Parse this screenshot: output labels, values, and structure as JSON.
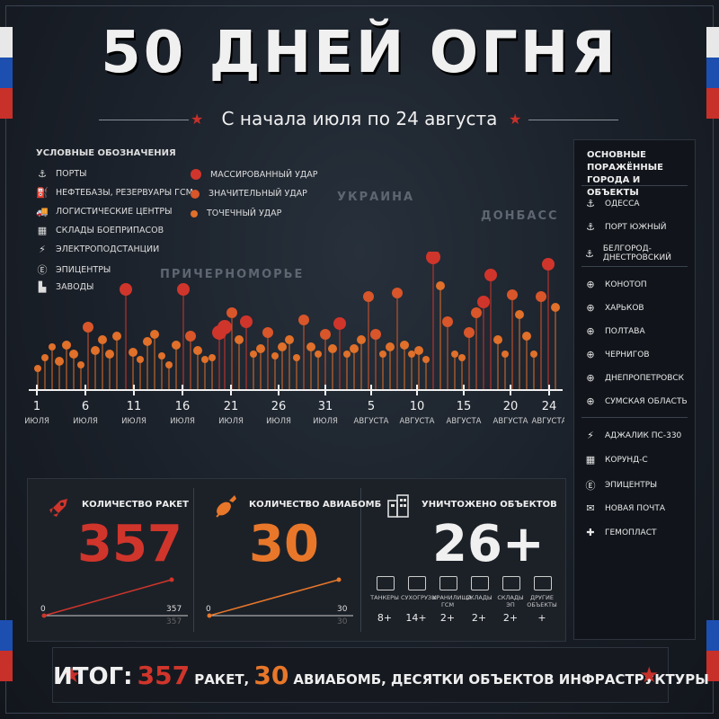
{
  "title": "50 ДНЕЙ ОГНЯ",
  "subtitle": "С начала июля по 24 августа",
  "legend": {
    "title": "УСЛОВНЫЕ ОБОЗНАЧЕНИЯ",
    "items": [
      {
        "icon": "anchor-icon",
        "label": "ПОРТЫ"
      },
      {
        "icon": "fuel-icon",
        "label": "НЕФТЕБАЗЫ, РЕЗЕРВУАРЫ ГСМ"
      },
      {
        "icon": "truck-icon",
        "label": "ЛОГИСТИЧЕСКИЕ ЦЕНТРЫ"
      },
      {
        "icon": "ammo-icon",
        "label": "СКЛАДЫ БОЕПРИПАСОВ"
      },
      {
        "icon": "bolt-icon",
        "label": "ЭЛЕКТРОПОДСТАНЦИИ"
      },
      {
        "icon": "e-box-icon",
        "label": "ЭПИЦЕНТРЫ"
      },
      {
        "icon": "factory-icon",
        "label": "ЗАВОДЫ"
      }
    ],
    "strikes": [
      {
        "label": "МАССИРОВАННЫЙ УДАР",
        "color": "#d0352b"
      },
      {
        "label": "ЗНАЧИТЕЛЬНЫЙ УДАР",
        "color": "#d8562a"
      },
      {
        "label": "ТОЧЕЧНЫЙ УДАР",
        "color": "#e0702a"
      }
    ]
  },
  "map_labels": [
    "УКРАИНА",
    "ДОНБАСС",
    "ПРИЧЕРНОМОРЬЕ"
  ],
  "timeline": {
    "ticks": [
      {
        "day": "1",
        "month": "ИЮЛЯ"
      },
      {
        "day": "6",
        "month": "ИЮЛЯ"
      },
      {
        "day": "11",
        "month": "ИЮЛЯ"
      },
      {
        "day": "16",
        "month": "ИЮЛЯ"
      },
      {
        "day": "21",
        "month": "ИЮЛЯ"
      },
      {
        "day": "26",
        "month": "ИЮЛЯ"
      },
      {
        "day": "31",
        "month": "ИЮЛЯ"
      },
      {
        "day": "5",
        "month": "АВГУСТА"
      },
      {
        "day": "10",
        "month": "АВГУСТА"
      },
      {
        "day": "15",
        "month": "АВГУСТА"
      },
      {
        "day": "20",
        "month": "АВГУСТА"
      },
      {
        "day": "24",
        "month": "АВГУСТА"
      }
    ]
  },
  "right_panel": {
    "title_1": "ОСНОВНЫЕ ПОРАЖЁННЫЕ",
    "title_2": "ГОРОДА И ОБЪЕКТЫ",
    "groups": [
      [
        {
          "icon": "anchor-icon",
          "label": "ОДЕССА"
        },
        {
          "icon": "anchor-icon",
          "label": "ПОРТ ЮЖНЫЙ"
        },
        {
          "icon": "anchor-icon",
          "label": "БЕЛГОРОД-ДНЕСТРОВСКИЙ"
        }
      ],
      [
        {
          "icon": "target-icon",
          "label": "КОНОТОП"
        },
        {
          "icon": "target-icon",
          "label": "ХАРЬКОВ"
        },
        {
          "icon": "target-icon",
          "label": "ПОЛТАВА"
        },
        {
          "icon": "target-icon",
          "label": "ЧЕРНИГОВ"
        },
        {
          "icon": "target-icon",
          "label": "ДНЕПРОПЕТРОВСК"
        },
        {
          "icon": "target-icon",
          "label": "СУМСКАЯ ОБЛАСТЬ"
        }
      ],
      [
        {
          "icon": "bolt-icon",
          "label": "АДЖАЛИК ПС-330"
        },
        {
          "icon": "ammo-icon",
          "label": "КОРУНД-С"
        },
        {
          "icon": "e-box-icon",
          "label": "ЭПИЦЕНТРЫ"
        },
        {
          "icon": "mail-icon",
          "label": "НОВАЯ ПОЧТА"
        },
        {
          "icon": "cross-icon",
          "label": "ГЕМОПЛАСТ"
        }
      ]
    ]
  },
  "stats": {
    "missiles": {
      "label": "КОЛИЧЕСТВО РАКЕТ",
      "value": "357",
      "start": "0",
      "end": "357",
      "end_shadow": "357",
      "color": "#d0352b"
    },
    "bombs": {
      "label": "КОЛИЧЕСТВО АВИАБОМБ",
      "value": "30",
      "start": "0",
      "end": "30",
      "end_shadow": "30",
      "color": "#e8772a"
    },
    "objects": {
      "label": "УНИЧТОЖЕНО ОБЪЕКТОВ",
      "value": "26+",
      "categories": [
        {
          "name": "ТАНКЕРЫ",
          "value": "8+"
        },
        {
          "name": "СУХОГРУЗЫ",
          "value": "14+"
        },
        {
          "name": "ХРАНИЛИЩА ГСМ",
          "value": "2+"
        },
        {
          "name": "СКЛАДЫ",
          "value": "2+"
        },
        {
          "name": "СКЛАДЫ ЭП",
          "value": "2+"
        },
        {
          "name": "ДРУГИЕ ОБЪЕКТЫ",
          "value": "+"
        }
      ]
    }
  },
  "summary": {
    "label": "ИТОГ:",
    "missiles_value": "357",
    "missiles_unit": "РАКЕТ,",
    "bombs_value": "30",
    "bombs_unit": "АВИАБОМБ,",
    "rest": "ДЕСЯТКИ ОБЪЕКТОВ ИНФРАСТРУКТУРЫ"
  }
}
